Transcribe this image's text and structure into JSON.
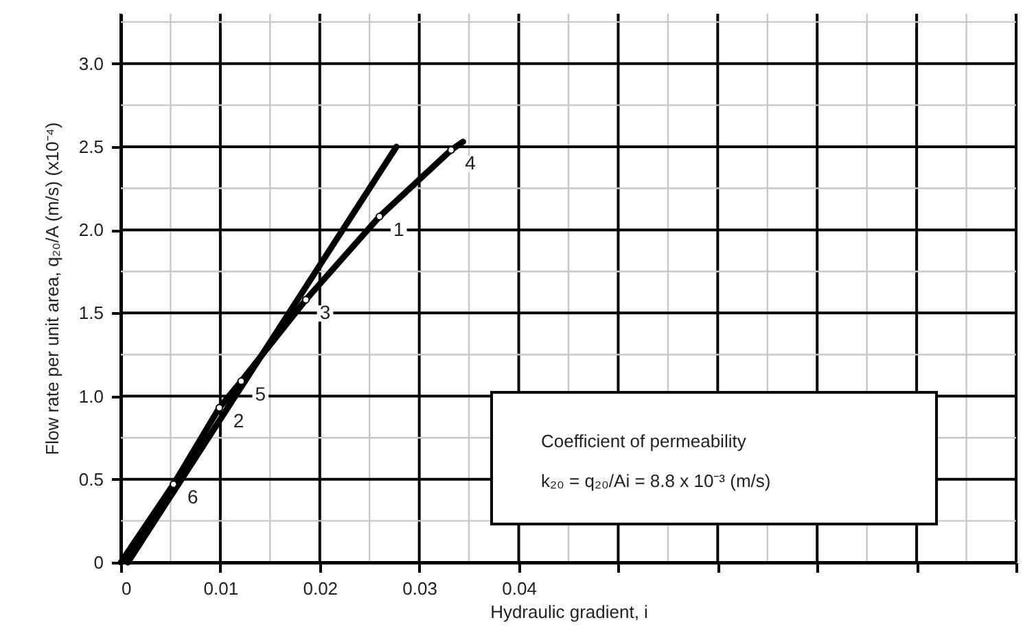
{
  "chart_data": {
    "type": "line",
    "xlabel": "Hydraulic gradient, i",
    "ylabel": "Flow rate per unit area,  q₂₀/A (m/s) (x10⁻⁴)",
    "xlim": [
      0,
      0.09
    ],
    "ylim": [
      0,
      3.3
    ],
    "xticks": [
      0,
      {
        "value": 0.005,
        "label": null
      },
      0.01,
      {
        "value": 0.015,
        "label": null
      },
      0.02,
      {
        "value": 0.025,
        "label": null
      },
      0.03,
      {
        "value": 0.035,
        "label": null
      },
      0.04,
      {
        "value": 0.045,
        "label": null
      },
      {
        "value": 0.05,
        "label": null
      },
      {
        "value": 0.055,
        "label": null
      },
      {
        "value": 0.06,
        "label": null
      },
      {
        "value": 0.065,
        "label": null
      },
      {
        "value": 0.07,
        "label": null
      },
      {
        "value": 0.075,
        "label": null
      },
      {
        "value": 0.08,
        "label": null
      },
      {
        "value": 0.085,
        "label": null
      },
      {
        "value": 0.09,
        "label": null
      }
    ],
    "yticks": [
      0,
      {
        "value": 0.25,
        "label": null
      },
      0.5,
      {
        "value": 0.75,
        "label": null
      },
      {
        "value": 1,
        "label": "1.0"
      },
      {
        "value": 1.25,
        "label": null
      },
      1.5,
      {
        "value": 1.75,
        "label": null
      },
      {
        "value": 2,
        "label": "2.0"
      },
      {
        "value": 2.25,
        "label": null
      },
      2.5,
      {
        "value": 2.75,
        "label": null
      },
      {
        "value": 3,
        "label": "3.0"
      },
      {
        "value": 3.25,
        "label": null
      }
    ],
    "grid": true,
    "series": [
      {
        "color": "#000000",
        "x": [
          0.0007,
          0.0277
        ],
        "values": [
          0,
          2.5
        ]
      },
      {
        "color": "#000000",
        "x": [
          0,
          0.0053,
          0.0099,
          0.0121,
          0.0186,
          0.026,
          0.0332,
          0.0344
        ],
        "values": [
          0,
          0.47,
          0.93,
          1.09,
          1.58,
          2.08,
          2.48,
          2.53
        ]
      },
      {
        "type": "scatter",
        "color": "#ffffff",
        "marker": "circle",
        "x": [
          0.026,
          0.0099,
          0.0186,
          0.0332,
          0.0121,
          0.0053
        ],
        "values": [
          2.08,
          0.93,
          1.58,
          2.48,
          1.09,
          0.47
        ]
      }
    ],
    "annotations": [
      {
        "text": "1",
        "x": 0.026,
        "y": 2.08
      },
      {
        "text": "2",
        "x": 0.0099,
        "y": 0.93
      },
      {
        "text": "3",
        "x": 0.0186,
        "y": 1.58
      },
      {
        "text": "4",
        "x": 0.0332,
        "y": 2.48
      },
      {
        "text": "5",
        "x": 0.0121,
        "y": 1.09
      },
      {
        "text": "6",
        "x": 0.0053,
        "y": 0.47
      },
      "Coefficient of permeability",
      "k₂₀ = q₂₀/Ai = 8.8 x 10⁻³ (m/s)"
    ]
  }
}
